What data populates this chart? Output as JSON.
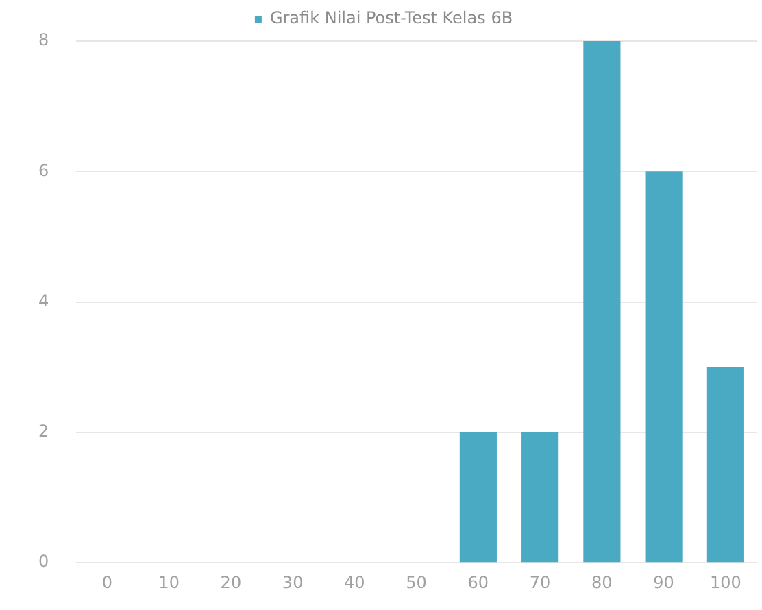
{
  "chart_data": {
    "type": "bar",
    "categories": [
      "0",
      "10",
      "20",
      "30",
      "40",
      "50",
      "60",
      "70",
      "80",
      "90",
      "100"
    ],
    "series": [
      {
        "name": "Grafik Nilai Post-Test Kelas 6B",
        "color": "#4aaac4",
        "values": [
          0,
          0,
          0,
          0,
          0,
          0,
          2,
          2,
          8,
          6,
          3
        ]
      }
    ],
    "ylim": [
      0,
      8
    ],
    "yticks": [
      0,
      2,
      4,
      6,
      8
    ],
    "grid": "y",
    "legend": "top"
  }
}
